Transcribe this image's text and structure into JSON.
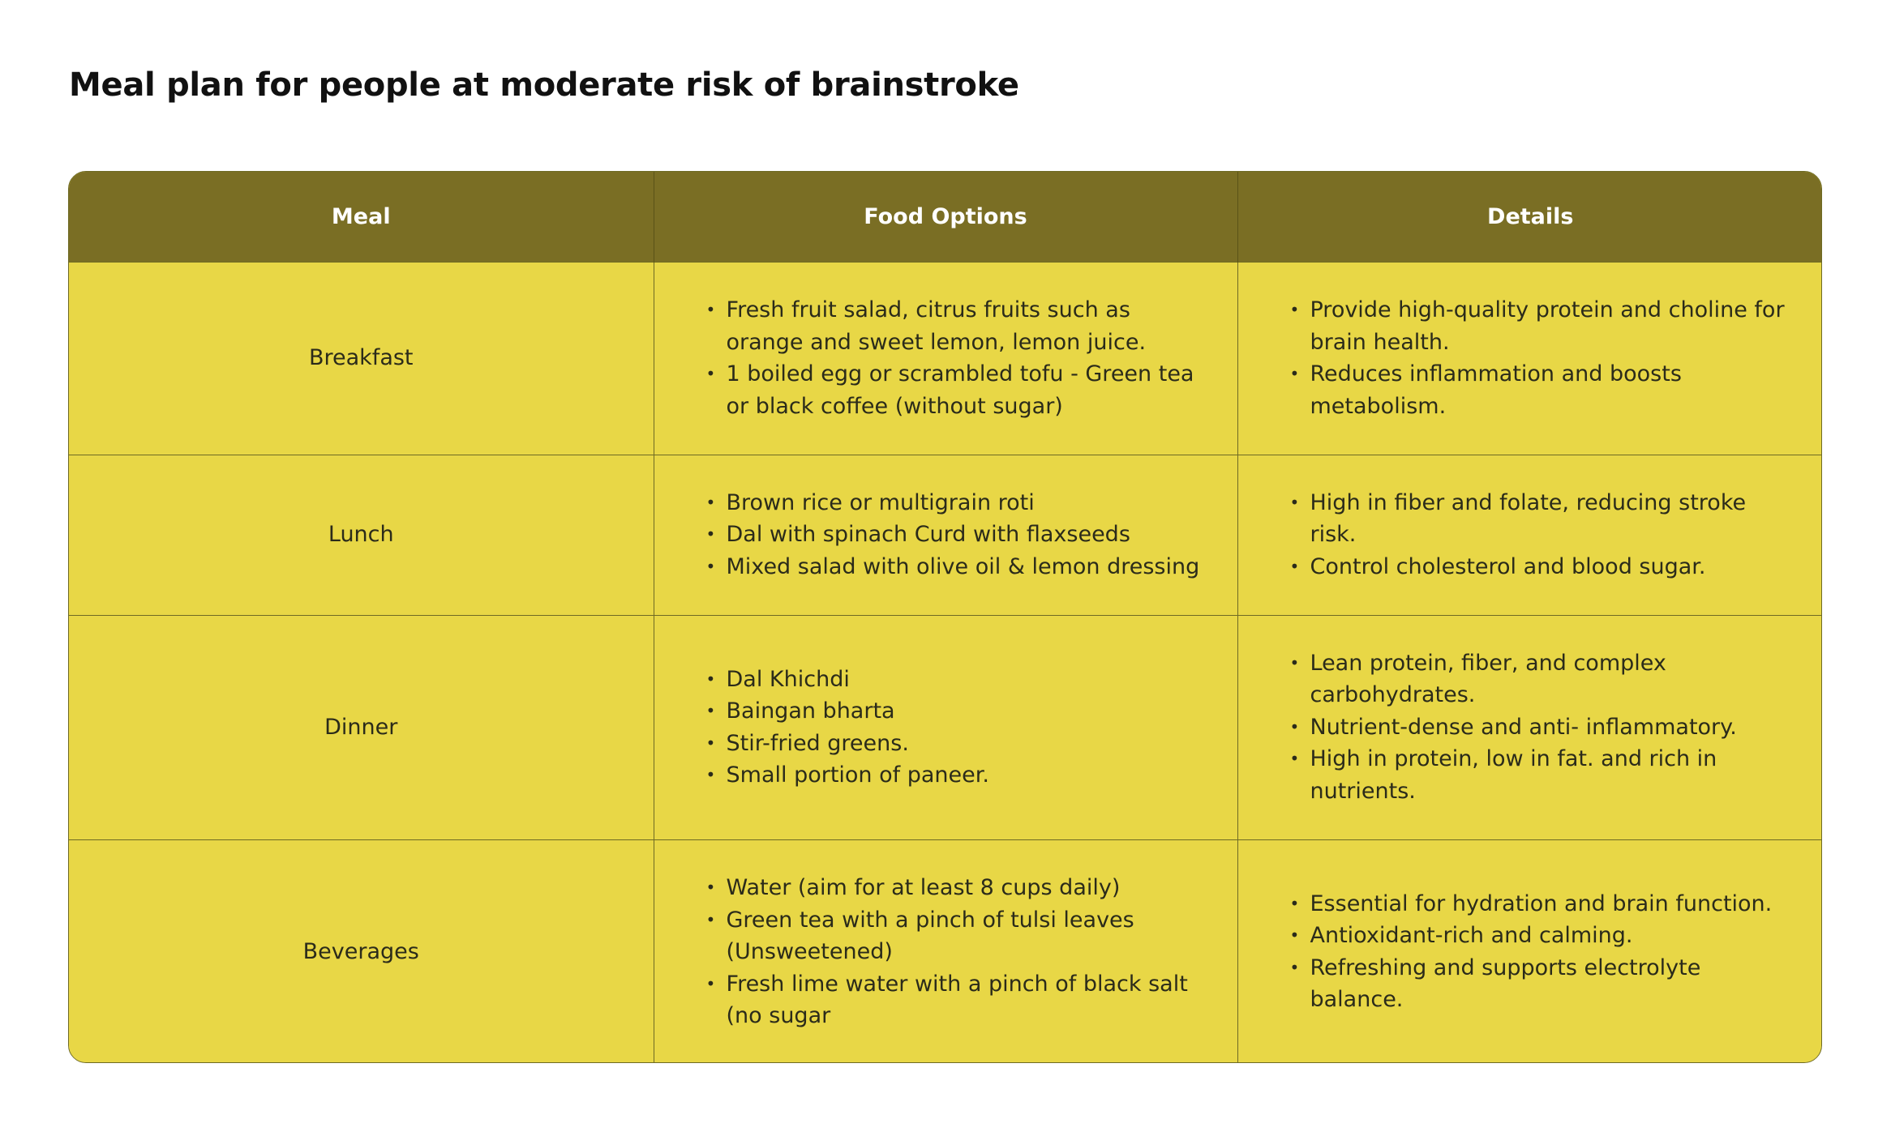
{
  "title": "Meal plan for people at moderate risk of brainstroke",
  "colors": {
    "header_bg": "#7a6e24",
    "row_bg": "#e8d746",
    "border": "#6e6a24"
  },
  "table": {
    "headers": [
      "Meal",
      "Food Options",
      "Details"
    ],
    "rows": [
      {
        "meal": "Breakfast",
        "food_options": [
          "Fresh fruit salad, citrus fruits such as orange and sweet lemon, lemon juice.",
          "1 boiled egg or scrambled tofu - Green tea or black coffee (without sugar)"
        ],
        "details": [
          "Provide high-quality protein and choline for brain health.",
          "Reduces inflammation and boosts metabolism."
        ]
      },
      {
        "meal": "Lunch",
        "food_options": [
          "Brown rice or multigrain roti",
          "Dal with spinach Curd with flaxseeds",
          "Mixed salad with olive oil & lemon dressing"
        ],
        "details": [
          "High in fiber and folate, reducing stroke risk.",
          "Control cholesterol and blood sugar."
        ]
      },
      {
        "meal": "Dinner",
        "food_options": [
          "Dal Khichdi",
          "Baingan bharta",
          "Stir-fried greens.",
          "Small portion of paneer."
        ],
        "details": [
          "Lean protein, fiber, and complex carbohydrates.",
          "Nutrient-dense and anti- inflammatory.",
          "High in protein, low in fat. and rich in nutrients."
        ]
      },
      {
        "meal": "Beverages",
        "food_options": [
          "Water (aim for at least 8 cups daily)",
          "Green tea with a pinch of tulsi leaves (Unsweetened)",
          "Fresh lime water with a pinch of black salt (no sugar"
        ],
        "details": [
          "Essential for hydration and brain function.",
          "Antioxidant-rich and calming.",
          "Refreshing and supports electrolyte balance."
        ]
      }
    ]
  }
}
